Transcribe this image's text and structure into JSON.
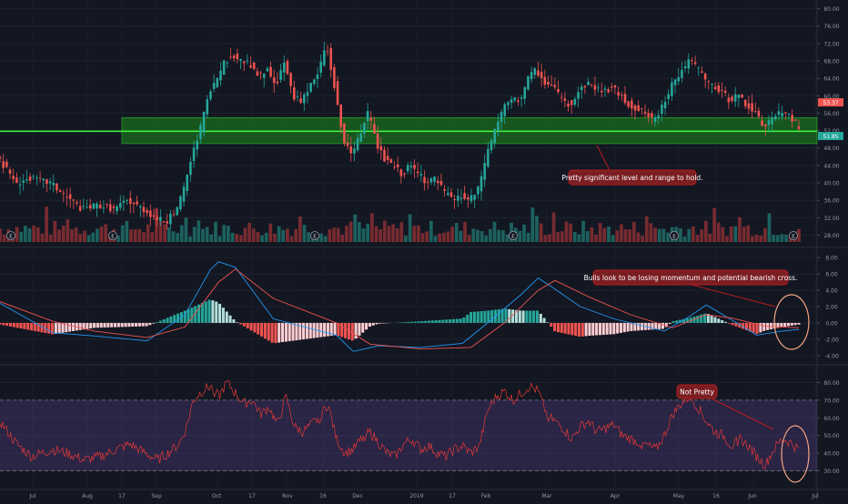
{
  "chart_data": [
    {
      "type": "candlestick",
      "panel": "price",
      "ylim": [
        26,
        82
      ],
      "y_ticks": [
        28,
        32,
        36,
        40,
        44,
        48,
        52,
        56,
        60,
        64,
        68,
        72,
        76,
        80
      ],
      "x_tick_labels": [
        "Jul",
        "Aug",
        "17",
        "Sep",
        "Oct",
        "17",
        "Nov",
        "16",
        "Dec",
        "2019",
        "17",
        "Feb",
        "Mar",
        "Apr",
        "May",
        "16",
        "Jun",
        "Jul"
      ],
      "price_labels": {
        "last": "53.37",
        "level": "51.85"
      },
      "support_zone": {
        "low": 49.0,
        "high": 55.0,
        "color": "#1b8a1b"
      },
      "support_line": {
        "value": 51.85,
        "color": "#3cf03c"
      },
      "close_path": [
        [
          0,
          46
        ],
        [
          8,
          40
        ],
        [
          15,
          41
        ],
        [
          25,
          40
        ],
        [
          32,
          37
        ],
        [
          40,
          34
        ],
        [
          48,
          35
        ],
        [
          55,
          34
        ],
        [
          62,
          36
        ],
        [
          69,
          34
        ],
        [
          75,
          32
        ],
        [
          80,
          31
        ],
        [
          85,
          34
        ],
        [
          88,
          38
        ],
        [
          92,
          46
        ],
        [
          96,
          52
        ],
        [
          100,
          60
        ],
        [
          104,
          64
        ],
        [
          108,
          68
        ],
        [
          112,
          69
        ],
        [
          116,
          68
        ],
        [
          120,
          67
        ],
        [
          124,
          64
        ],
        [
          128,
          66
        ],
        [
          132,
          62
        ],
        [
          136,
          68
        ],
        [
          140,
          60
        ],
        [
          144,
          59
        ],
        [
          148,
          62
        ],
        [
          152,
          65
        ],
        [
          156,
          72
        ],
        [
          160,
          62
        ],
        [
          164,
          50
        ],
        [
          168,
          46
        ],
        [
          172,
          51
        ],
        [
          176,
          56
        ],
        [
          180,
          49
        ],
        [
          184,
          45
        ],
        [
          188,
          44
        ],
        [
          192,
          42
        ],
        [
          196,
          44
        ],
        [
          200,
          42
        ],
        [
          204,
          40
        ],
        [
          208,
          41
        ],
        [
          212,
          38
        ],
        [
          216,
          36
        ],
        [
          220,
          37
        ],
        [
          224,
          36
        ],
        [
          228,
          38
        ],
        [
          232,
          46
        ],
        [
          236,
          52
        ],
        [
          240,
          57
        ],
        [
          244,
          59
        ],
        [
          248,
          59
        ],
        [
          252,
          64
        ],
        [
          256,
          66
        ],
        [
          260,
          63
        ],
        [
          264,
          62
        ],
        [
          268,
          59
        ],
        [
          272,
          58
        ],
        [
          276,
          61
        ],
        [
          280,
          63
        ],
        [
          284,
          62
        ],
        [
          288,
          61
        ],
        [
          292,
          62
        ],
        [
          296,
          60
        ],
        [
          300,
          58
        ],
        [
          304,
          57
        ],
        [
          308,
          56
        ],
        [
          312,
          54
        ],
        [
          316,
          58
        ],
        [
          320,
          62
        ],
        [
          324,
          65
        ],
        [
          328,
          68
        ],
        [
          332,
          67
        ],
        [
          336,
          64
        ],
        [
          340,
          62
        ],
        [
          344,
          61
        ],
        [
          348,
          59
        ],
        [
          352,
          60
        ],
        [
          356,
          58
        ],
        [
          360,
          56
        ],
        [
          364,
          53
        ],
        [
          368,
          55
        ],
        [
          372,
          56
        ],
        [
          376,
          56
        ],
        [
          380,
          53
        ]
      ],
      "volume_markers": [
        "E",
        "E",
        "E",
        "E",
        "E",
        "E"
      ],
      "annotations": [
        "Pretty significant level and range to hold."
      ]
    },
    {
      "type": "line",
      "panel": "macd",
      "ylim": [
        -4.8,
        8.8
      ],
      "y_ticks": [
        -4.0,
        -2.0,
        0.0,
        2.0,
        4.0,
        6.0,
        8.0
      ],
      "series": [
        {
          "color": "#2196f3",
          "values": [
            [
              0,
              2.4
            ],
            [
              25,
              -1.2
            ],
            [
              45,
              -1.6
            ],
            [
              70,
              -2.2
            ],
            [
              88,
              1.0
            ],
            [
              100,
              6.5
            ],
            [
              104,
              7.5
            ],
            [
              112,
              6.8
            ],
            [
              130,
              0.5
            ],
            [
              160,
              -1.5
            ],
            [
              168,
              -3.5
            ],
            [
              180,
              -2.8
            ],
            [
              200,
              -3.0
            ],
            [
              220,
              -2.5
            ],
            [
              232,
              0.0
            ],
            [
              248,
              3.5
            ],
            [
              256,
              5.5
            ],
            [
              262,
              4.5
            ],
            [
              276,
              2.0
            ],
            [
              292,
              0.5
            ],
            [
              316,
              -1.0
            ],
            [
              328,
              0.8
            ],
            [
              336,
              2.2
            ],
            [
              344,
              1.0
            ],
            [
              360,
              -1.5
            ],
            [
              372,
              -1.0
            ],
            [
              380,
              -0.8
            ]
          ]
        },
        {
          "color": "#ef5350",
          "values": [
            [
              0,
              2.6
            ],
            [
              25,
              0.2
            ],
            [
              45,
              -1.0
            ],
            [
              70,
              -1.8
            ],
            [
              88,
              -0.5
            ],
            [
              104,
              5.0
            ],
            [
              112,
              6.6
            ],
            [
              130,
              3.0
            ],
            [
              160,
              0.0
            ],
            [
              176,
              -2.6
            ],
            [
              200,
              -3.2
            ],
            [
              224,
              -3.0
            ],
            [
              240,
              0.0
            ],
            [
              256,
              4.0
            ],
            [
              264,
              5.2
            ],
            [
              280,
              3.2
            ],
            [
              300,
              1.0
            ],
            [
              320,
              -0.6
            ],
            [
              336,
              1.0
            ],
            [
              348,
              0.6
            ],
            [
              364,
              -0.4
            ],
            [
              380,
              -0.6
            ]
          ]
        }
      ],
      "annotations": [
        "Bulls look to be losing momentum and potential bearish cross."
      ]
    },
    {
      "type": "line",
      "panel": "rsi",
      "ylim": [
        22,
        88
      ],
      "y_ticks": [
        30.0,
        40.0,
        50.0,
        60.0,
        70.0,
        80.0
      ],
      "bands": [
        30,
        70
      ],
      "series": [
        {
          "color": "#e53935",
          "values": [
            [
              0,
              58
            ],
            [
              8,
              45
            ],
            [
              15,
              38
            ],
            [
              25,
              42
            ],
            [
              32,
              40
            ],
            [
              40,
              36
            ],
            [
              48,
              38
            ],
            [
              55,
              42
            ],
            [
              62,
              45
            ],
            [
              69,
              40
            ],
            [
              75,
              36
            ],
            [
              80,
              40
            ],
            [
              85,
              45
            ],
            [
              88,
              52
            ],
            [
              92,
              70
            ],
            [
              96,
              75
            ],
            [
              100,
              78
            ],
            [
              104,
              72
            ],
            [
              108,
              80
            ],
            [
              112,
              74
            ],
            [
              116,
              68
            ],
            [
              120,
              70
            ],
            [
              124,
              62
            ],
            [
              128,
              66
            ],
            [
              132,
              56
            ],
            [
              136,
              72
            ],
            [
              140,
              55
            ],
            [
              144,
              52
            ],
            [
              148,
              56
            ],
            [
              152,
              60
            ],
            [
              156,
              68
            ],
            [
              160,
              48
            ],
            [
              164,
              40
            ],
            [
              168,
              42
            ],
            [
              172,
              48
            ],
            [
              176,
              52
            ],
            [
              180,
              46
            ],
            [
              184,
              40
            ],
            [
              188,
              38
            ],
            [
              192,
              45
            ],
            [
              196,
              48
            ],
            [
              200,
              42
            ],
            [
              204,
              44
            ],
            [
              208,
              40
            ],
            [
              212,
              38
            ],
            [
              216,
              42
            ],
            [
              220,
              44
            ],
            [
              224,
              40
            ],
            [
              228,
              44
            ],
            [
              232,
              64
            ],
            [
              236,
              72
            ],
            [
              240,
              75
            ],
            [
              244,
              70
            ],
            [
              248,
              74
            ],
            [
              252,
              78
            ],
            [
              256,
              75
            ],
            [
              260,
              62
            ],
            [
              264,
              58
            ],
            [
              268,
              54
            ],
            [
              272,
              48
            ],
            [
              276,
              55
            ],
            [
              280,
              58
            ],
            [
              284,
              52
            ],
            [
              288,
              54
            ],
            [
              292,
              56
            ],
            [
              296,
              50
            ],
            [
              300,
              48
            ],
            [
              304,
              46
            ],
            [
              308,
              44
            ],
            [
              312,
              42
            ],
            [
              316,
              50
            ],
            [
              320,
              62
            ],
            [
              324,
              68
            ],
            [
              328,
              72
            ],
            [
              332,
              66
            ],
            [
              336,
              58
            ],
            [
              340,
              52
            ],
            [
              344,
              50
            ],
            [
              348,
              44
            ],
            [
              352,
              48
            ],
            [
              356,
              44
            ],
            [
              360,
              38
            ],
            [
              364,
              33
            ],
            [
              368,
              42
            ],
            [
              372,
              48
            ],
            [
              376,
              46
            ],
            [
              380,
              42
            ]
          ]
        }
      ],
      "annotations": [
        "Not Pretty"
      ]
    }
  ]
}
